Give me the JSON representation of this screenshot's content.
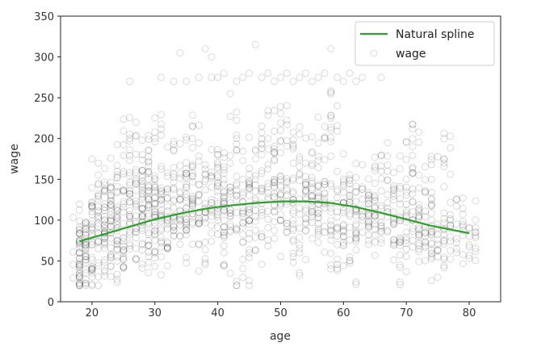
{
  "chart_data": {
    "type": "scatter",
    "title": "",
    "xlabel": "age",
    "ylabel": "wage",
    "xlim": [
      15,
      85
    ],
    "ylim": [
      0,
      350
    ],
    "xticks": [
      20,
      30,
      40,
      50,
      60,
      70,
      80
    ],
    "yticks": [
      0,
      50,
      100,
      150,
      200,
      250,
      300,
      350
    ],
    "grid": false,
    "legend": {
      "position": "upper right",
      "entries": [
        "Natural spline",
        "wage"
      ]
    },
    "colors": {
      "spline": "#2ca02c",
      "points": "#000000"
    },
    "series": [
      {
        "name": "Natural spline",
        "type": "line",
        "x": [
          18,
          22,
          26,
          30,
          34,
          38,
          42,
          46,
          50,
          54,
          58,
          62,
          66,
          70,
          74,
          78,
          80
        ],
        "y": [
          74,
          83,
          92,
          101,
          108,
          114,
          118,
          121,
          123,
          123,
          121,
          116,
          109,
          101,
          93,
          87,
          84
        ]
      },
      {
        "name": "wage",
        "type": "scatter",
        "marker": "open-circle",
        "note": "3000 points; representative sample below",
        "points": [
          [
            18,
            74
          ],
          [
            18,
            60
          ],
          [
            18,
            45
          ],
          [
            18,
            30
          ],
          [
            19,
            90
          ],
          [
            19,
            70
          ],
          [
            19,
            55
          ],
          [
            20,
            80
          ],
          [
            20,
            95
          ],
          [
            20,
            40
          ],
          [
            21,
            65
          ],
          [
            21,
            110
          ],
          [
            21,
            145
          ],
          [
            22,
            85
          ],
          [
            22,
            120
          ],
          [
            22,
            70
          ],
          [
            23,
            100
          ],
          [
            23,
            130
          ],
          [
            23,
            55
          ],
          [
            24,
            90
          ],
          [
            24,
            160
          ],
          [
            24,
            75
          ],
          [
            25,
            110
          ],
          [
            25,
            135
          ],
          [
            25,
            60
          ],
          [
            26,
            95
          ],
          [
            26,
            270
          ],
          [
            26,
            200
          ],
          [
            27,
            120
          ],
          [
            27,
            85
          ],
          [
            27,
            150
          ],
          [
            28,
            105
          ],
          [
            28,
            180
          ],
          [
            28,
            70
          ],
          [
            29,
            125
          ],
          [
            29,
            95
          ],
          [
            29,
            160
          ],
          [
            30,
            110
          ],
          [
            30,
            200
          ],
          [
            30,
            140
          ],
          [
            30,
            75
          ],
          [
            31,
            120
          ],
          [
            31,
            90
          ],
          [
            31,
            275
          ],
          [
            32,
            135
          ],
          [
            32,
            100
          ],
          [
            32,
            65
          ],
          [
            33,
            115
          ],
          [
            33,
            270
          ],
          [
            33,
            185
          ],
          [
            34,
            125
          ],
          [
            34,
            305
          ],
          [
            34,
            80
          ],
          [
            35,
            140
          ],
          [
            35,
            110
          ],
          [
            35,
            270
          ],
          [
            36,
            120
          ],
          [
            36,
            200
          ],
          [
            36,
            95
          ],
          [
            37,
            130
          ],
          [
            37,
            275
          ],
          [
            37,
            70
          ],
          [
            38,
            110
          ],
          [
            38,
            310
          ],
          [
            38,
            150
          ],
          [
            39,
            125
          ],
          [
            39,
            275
          ],
          [
            39,
            300
          ],
          [
            40,
            135
          ],
          [
            40,
            100
          ],
          [
            40,
            275
          ],
          [
            40,
            180
          ],
          [
            41,
            120
          ],
          [
            41,
            280
          ],
          [
            41,
            60
          ],
          [
            42,
            140
          ],
          [
            42,
            255
          ],
          [
            42,
            95
          ],
          [
            43,
            125
          ],
          [
            43,
            270
          ],
          [
            43,
            200
          ],
          [
            44,
            115
          ],
          [
            44,
            275
          ],
          [
            44,
            30
          ],
          [
            45,
            130
          ],
          [
            45,
            280
          ],
          [
            45,
            100
          ],
          [
            46,
            120
          ],
          [
            46,
            315
          ],
          [
            46,
            175
          ],
          [
            47,
            135
          ],
          [
            47,
            275
          ],
          [
            47,
            80
          ],
          [
            48,
            125
          ],
          [
            48,
            280
          ],
          [
            48,
            200
          ],
          [
            49,
            110
          ],
          [
            49,
            270
          ],
          [
            49,
            150
          ],
          [
            50,
            130
          ],
          [
            50,
            275
          ],
          [
            50,
            210
          ],
          [
            51,
            120
          ],
          [
            51,
            280
          ],
          [
            51,
            85
          ],
          [
            52,
            125
          ],
          [
            52,
            270
          ],
          [
            52,
            190
          ],
          [
            53,
            115
          ],
          [
            53,
            275
          ],
          [
            53,
            60
          ],
          [
            54,
            125
          ],
          [
            54,
            280
          ],
          [
            54,
            170
          ],
          [
            55,
            110
          ],
          [
            55,
            270
          ],
          [
            55,
            145
          ],
          [
            56,
            120
          ],
          [
            56,
            275
          ],
          [
            56,
            90
          ],
          [
            57,
            115
          ],
          [
            57,
            280
          ],
          [
            57,
            200
          ],
          [
            58,
            120
          ],
          [
            58,
            310
          ],
          [
            58,
            225
          ],
          [
            59,
            110
          ],
          [
            59,
            275
          ],
          [
            59,
            70
          ],
          [
            60,
            115
          ],
          [
            60,
            270
          ],
          [
            60,
            150
          ],
          [
            61,
            105
          ],
          [
            61,
            280
          ],
          [
            61,
            50
          ],
          [
            62,
            110
          ],
          [
            62,
            270
          ],
          [
            62,
            135
          ],
          [
            63,
            100
          ],
          [
            63,
            275
          ],
          [
            64,
            95
          ],
          [
            64,
            120
          ],
          [
            65,
            105
          ],
          [
            65,
            145
          ],
          [
            66,
            90
          ],
          [
            66,
            275
          ],
          [
            67,
            110
          ],
          [
            67,
            160
          ],
          [
            68,
            95
          ],
          [
            68,
            125
          ],
          [
            69,
            100
          ],
          [
            69,
            45
          ],
          [
            70,
            85
          ],
          [
            70,
            150
          ],
          [
            71,
            100
          ],
          [
            71,
            190
          ],
          [
            72,
            90
          ],
          [
            72,
            110
          ],
          [
            73,
            80
          ],
          [
            74,
            85
          ],
          [
            74,
            150
          ],
          [
            75,
            95
          ],
          [
            75,
            55
          ],
          [
            76,
            75
          ],
          [
            76,
            175
          ],
          [
            77,
            100
          ],
          [
            78,
            95
          ],
          [
            80,
            90
          ],
          [
            80,
            80
          ]
        ]
      }
    ]
  }
}
